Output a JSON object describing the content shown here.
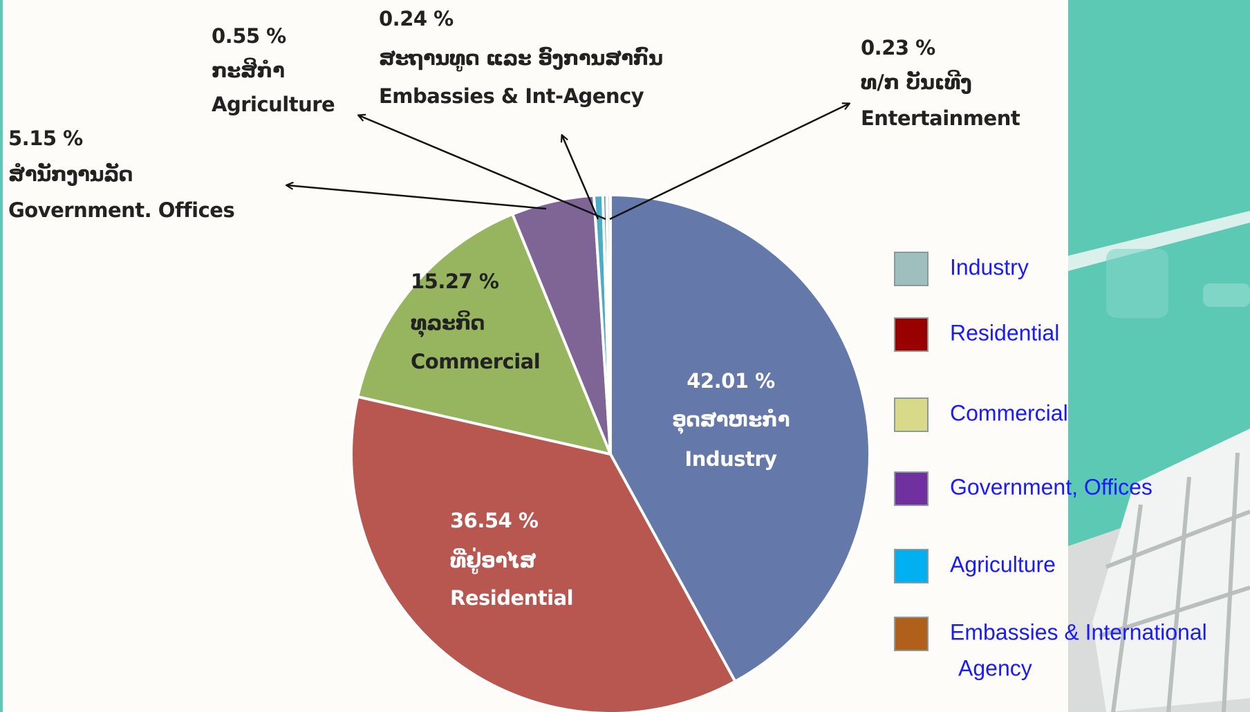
{
  "chart_data": {
    "type": "pie",
    "categories": [
      "Industry",
      "Residential",
      "Commercial",
      "Government.  Offices",
      "Agriculture",
      "Embassies & Int-Agency",
      "Entertainment"
    ],
    "lao_labels": [
      "ອຸດສາຫະກຳ",
      "ທີ່ຢູ່ອາໄສ",
      "ທຸລະກິດ",
      "ສຳນັກງານລັດ",
      "ກະສິກຳ",
      "ສະຖານທູດ ແລະ ອົງການສາກົນ",
      "ທ/ກ ບັນເທີງ"
    ],
    "values": [
      42.01,
      36.54,
      15.27,
      5.15,
      0.55,
      0.24,
      0.23
    ],
    "value_labels": [
      "42.01 %",
      "36.54 %",
      "15.27 %",
      "5.15 %",
      "0.55 %",
      "0.24 %",
      "0.23 %"
    ],
    "colors": [
      "#6479aa",
      "#b85650",
      "#96b55e",
      "#7f6496",
      "#4bacc6",
      "#3f8f9f",
      "#d6e6ea"
    ],
    "legend": [
      {
        "label": [
          "Industry"
        ],
        "color": "#9fbfbf"
      },
      {
        "label": [
          "Residential"
        ],
        "color": "#990000"
      },
      {
        "label": [
          "Commercial"
        ],
        "color": "#d9d98a"
      },
      {
        "label": [
          "Government, Offices"
        ],
        "color": "#7030a0"
      },
      {
        "label": [
          "Agriculture"
        ],
        "color": "#00b0f0"
      },
      {
        "label": [
          "Embassies & International",
          "Agency"
        ],
        "color": "#b0601a"
      }
    ]
  }
}
